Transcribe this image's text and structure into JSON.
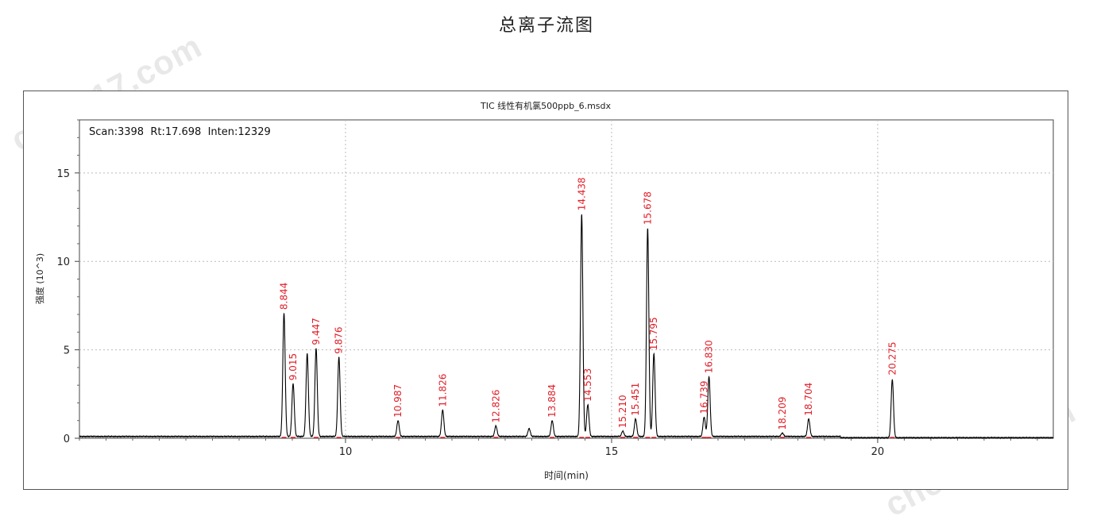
{
  "page_title": "总离子流图",
  "watermark_text": "chem17.com",
  "chart_data": {
    "type": "line",
    "title": "TIC 线性有机氯500ppb_6.msdx",
    "readout": "Scan:3398  Rt:17.698  Inten:12329",
    "xlabel": "时间(min)",
    "ylabel": "强度 (10^3)",
    "xlim": [
      5.0,
      23.3
    ],
    "ylim": [
      0,
      18
    ],
    "x_ticks": [
      10,
      15,
      20
    ],
    "y_ticks": [
      0,
      5,
      10,
      15
    ],
    "grid": true,
    "line_color": "#000000",
    "label_color": "#e0202a",
    "baseline": 0.1,
    "peaks": [
      {
        "rt": 8.844,
        "height": 7.0,
        "label": "8.844"
      },
      {
        "rt": 9.015,
        "height": 3.0,
        "label": "9.015"
      },
      {
        "rt": 9.28,
        "height": 4.7,
        "label": ""
      },
      {
        "rt": 9.447,
        "height": 5.0,
        "label": "9.447"
      },
      {
        "rt": 9.876,
        "height": 4.5,
        "label": "9.876"
      },
      {
        "rt": 10.987,
        "height": 0.9,
        "label": "10.987"
      },
      {
        "rt": 11.826,
        "height": 1.5,
        "label": "11.826"
      },
      {
        "rt": 12.826,
        "height": 0.6,
        "label": "12.826"
      },
      {
        "rt": 13.45,
        "height": 0.45,
        "label": ""
      },
      {
        "rt": 13.884,
        "height": 0.9,
        "label": "13.884"
      },
      {
        "rt": 14.438,
        "height": 12.6,
        "label": "14.438"
      },
      {
        "rt": 14.553,
        "height": 1.8,
        "label": "14.553"
      },
      {
        "rt": 15.21,
        "height": 0.3,
        "label": "15.210"
      },
      {
        "rt": 15.451,
        "height": 1.0,
        "label": "15.451"
      },
      {
        "rt": 15.678,
        "height": 11.8,
        "label": "15.678"
      },
      {
        "rt": 15.795,
        "height": 4.7,
        "label": "15.795"
      },
      {
        "rt": 16.739,
        "height": 1.1,
        "label": "16.739"
      },
      {
        "rt": 16.83,
        "height": 3.4,
        "label": "16.830"
      },
      {
        "rt": 18.209,
        "height": 0.2,
        "label": "18.209"
      },
      {
        "rt": 18.704,
        "height": 1.0,
        "label": "18.704"
      },
      {
        "rt": 20.275,
        "height": 3.3,
        "label": "20.275"
      }
    ]
  }
}
